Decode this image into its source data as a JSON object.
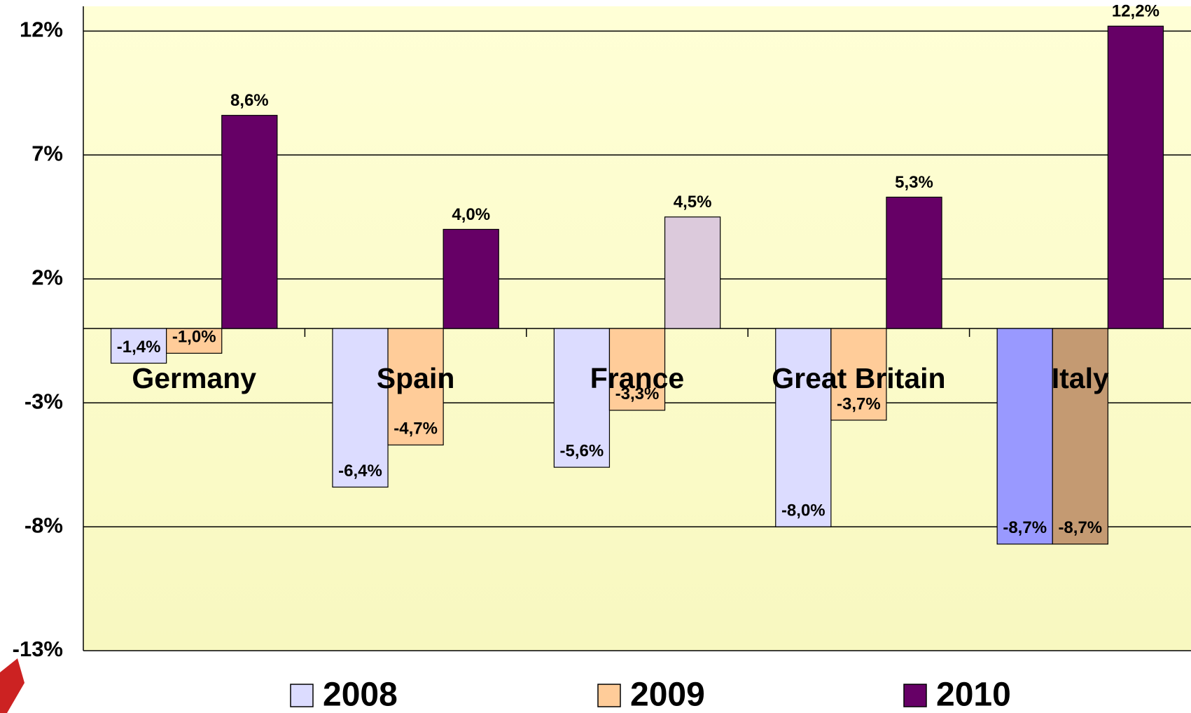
{
  "chart_data": {
    "type": "bar",
    "categories": [
      "Germany",
      "Spain",
      "France",
      "Great Britain",
      "Italy"
    ],
    "series": [
      {
        "name": "2008",
        "color": "#dcdcff",
        "colors": [
          "#dcdcff",
          "#dcdcff",
          "#dcdcff",
          "#dcdcff",
          "#9999ff"
        ],
        "values": [
          -1.4,
          -6.4,
          -5.6,
          -8.0,
          -8.7
        ],
        "value_labels": [
          "-1,4%",
          "-6,4%",
          "-5,6%",
          "-8,0%",
          "-8,7%"
        ]
      },
      {
        "name": "2009",
        "color": "#ffcc99",
        "colors": [
          "#ffcc99",
          "#ffcc99",
          "#ffcc99",
          "#ffcc99",
          "#c49a72"
        ],
        "values": [
          -1.0,
          -4.7,
          -3.3,
          -3.7,
          -8.7
        ],
        "value_labels": [
          "-1,0%",
          "-4,7%",
          "-3,3%",
          "-3,7%",
          "-8,7%"
        ]
      },
      {
        "name": "2010",
        "color": "#660066",
        "colors": [
          "#660066",
          "#660066",
          "#dccadc",
          "#660066",
          "#660066"
        ],
        "values": [
          8.6,
          4.0,
          4.5,
          5.3,
          12.2
        ],
        "value_labels": [
          "8,6%",
          "4,0%",
          "4,5%",
          "5,3%",
          "12,2%"
        ]
      }
    ],
    "ylim": [
      -13,
      13
    ],
    "yticks": [
      {
        "value": -13,
        "label": "-13%"
      },
      {
        "value": -8,
        "label": "-8%"
      },
      {
        "value": -3,
        "label": "-3%"
      },
      {
        "value": 2,
        "label": "2%"
      },
      {
        "value": 7,
        "label": "7%"
      },
      {
        "value": 12,
        "label": "12%"
      }
    ],
    "grid": true,
    "legend": "bottom"
  }
}
